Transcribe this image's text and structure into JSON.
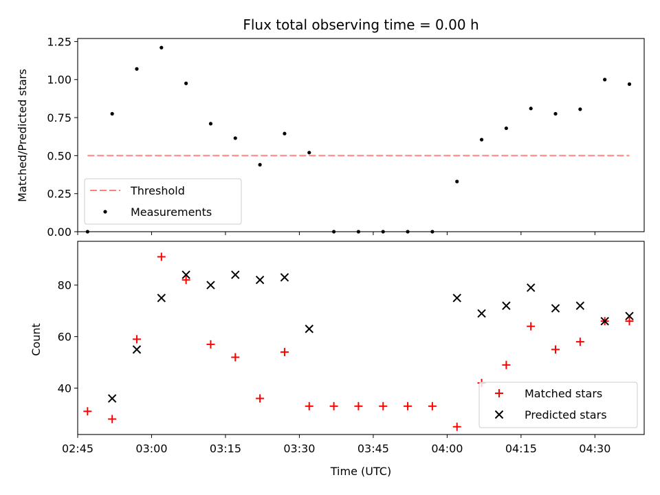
{
  "chart_data": [
    {
      "type": "scatter",
      "title": "Flux total observing time = 0.00 h",
      "xlabel": "",
      "ylabel": "Matched/Predicted stars",
      "ylim": [
        0,
        1.27
      ],
      "yticks": [
        "0.00",
        "0.25",
        "0.50",
        "0.75",
        "1.00",
        "1.25"
      ],
      "x": [
        "02:47",
        "02:52",
        "02:57",
        "03:02",
        "03:07",
        "03:12",
        "03:17",
        "03:22",
        "03:27",
        "03:32",
        "03:37",
        "03:42",
        "03:47",
        "03:52",
        "03:57",
        "04:02",
        "04:07",
        "04:12",
        "04:17",
        "04:22",
        "04:27",
        "04:32",
        "04:37"
      ],
      "series": [
        {
          "name": "Measurements",
          "color": "#000000",
          "values": [
            0.0,
            0.775,
            1.07,
            1.21,
            0.975,
            0.71,
            0.615,
            0.44,
            0.645,
            0.52,
            0.0,
            0.0,
            0.0,
            0.0,
            0.0,
            0.33,
            0.605,
            0.68,
            0.81,
            0.775,
            0.805,
            1.0,
            0.97
          ]
        },
        {
          "name": "Threshold",
          "color": "#ff7f7f",
          "style": "dashed",
          "x": [
            "02:47",
            "04:37"
          ],
          "values": [
            0.5,
            0.5
          ]
        }
      ],
      "legend": "lower-left",
      "grid": false
    },
    {
      "type": "scatter",
      "xlabel": "Time (UTC)",
      "ylabel": "Count",
      "xlim": [
        "02:45",
        "04:40"
      ],
      "xticks": [
        "02:45",
        "03:00",
        "03:15",
        "03:30",
        "03:45",
        "04:00",
        "04:15",
        "04:30"
      ],
      "ylim": [
        22,
        97
      ],
      "yticks": [
        "40",
        "60",
        "80"
      ],
      "series": [
        {
          "name": "Matched stars",
          "color": "#ff0000",
          "marker": "+",
          "x": [
            "02:47",
            "02:52",
            "02:57",
            "03:02",
            "03:07",
            "03:12",
            "03:17",
            "03:22",
            "03:27",
            "03:32",
            "03:37",
            "03:42",
            "03:47",
            "03:52",
            "03:57",
            "04:02",
            "04:07",
            "04:12",
            "04:17",
            "04:22",
            "04:27",
            "04:32",
            "04:37"
          ],
          "values": [
            31,
            28,
            59,
            91,
            82,
            57,
            52,
            36,
            54,
            33,
            33,
            33,
            33,
            33,
            33,
            25,
            42,
            49,
            64,
            55,
            58,
            66,
            66
          ]
        },
        {
          "name": "Predicted stars",
          "color": "#000000",
          "marker": "x",
          "x": [
            "02:52",
            "02:57",
            "03:02",
            "03:07",
            "03:12",
            "03:17",
            "03:22",
            "03:27",
            "03:32",
            "04:02",
            "04:07",
            "04:12",
            "04:17",
            "04:22",
            "04:27",
            "04:32",
            "04:37"
          ],
          "values": [
            36,
            55,
            75,
            84,
            80,
            84,
            82,
            83,
            63,
            75,
            69,
            72,
            79,
            71,
            72,
            66,
            68
          ]
        }
      ],
      "legend": "lower-right",
      "grid": false
    }
  ]
}
